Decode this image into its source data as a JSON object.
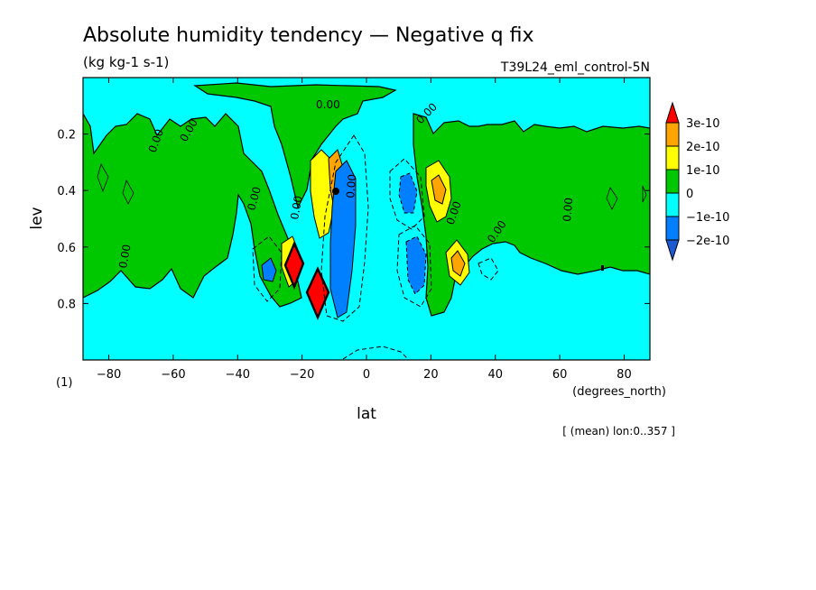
{
  "chart_data": {
    "type": "contour",
    "title": "Absolute humidity tendency — Negative q fix",
    "units": "(kg kg-1 s-1)",
    "run_label": "T39L24_eml_control-5N",
    "xlabel": "lat",
    "x_unit": "(degrees_north)",
    "ylabel": "lev",
    "y_unit": "(1)",
    "footnote": "[ (mean) lon:0..357 ]",
    "xlim": [
      -88,
      88
    ],
    "ylim": [
      1.0,
      0.0
    ],
    "y_inverted": true,
    "xticks": [
      -80,
      -60,
      -40,
      -20,
      0,
      20,
      40,
      60,
      80
    ],
    "xtick_labels": [
      "−80",
      "−60",
      "−40",
      "−20",
      "0",
      "20",
      "40",
      "60",
      "80"
    ],
    "yticks": [
      0.2,
      0.4,
      0.6,
      0.8
    ],
    "ytick_labels": [
      "0.2",
      "0.4",
      "0.6",
      "0.8"
    ],
    "contour_labels": [
      "0.00"
    ],
    "colorbar": {
      "levels": [
        "3e-10",
        "2e-10",
        "1e-10",
        "0",
        "−1e-10",
        "−2e-10"
      ],
      "colors": [
        "#ff0000",
        "#ffa500",
        "#ffff00",
        "#00c800",
        "#00ffff",
        "#0080ff",
        "#1e5ad2"
      ]
    },
    "regions": [
      {
        "level": "0 to 1e-10",
        "color": "#00c800",
        "desc": "positive band aloft and midlatitude columns"
      },
      {
        "level": "1e-10 to 2e-10",
        "color": "#ffff00",
        "desc": "subtropical maxima"
      },
      {
        "level": "2e-10 to 3e-10",
        "color": "#ffa500",
        "desc": "subtropical maxima"
      },
      {
        "level": "> 3e-10",
        "color": "#ff0000",
        "desc": "peaks near lat -22 / -14, lev 0.66 / 0.76"
      },
      {
        "level": "-1e-10 to 0",
        "color": "#00ffff",
        "desc": "background"
      },
      {
        "level": "< -1e-10",
        "color": "#0080ff",
        "desc": "minima near lat -10 and 13"
      }
    ]
  }
}
